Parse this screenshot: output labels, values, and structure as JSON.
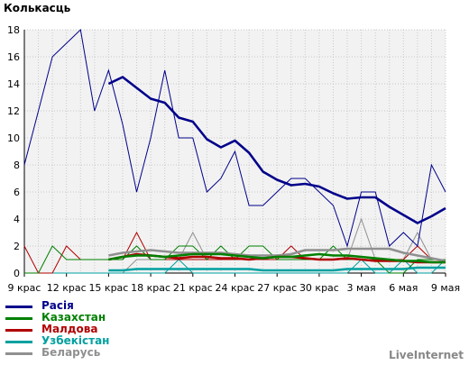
{
  "chart_data": {
    "type": "line",
    "ylabel": "Колькасць",
    "ylim": [
      0,
      18
    ],
    "yticks": [
      0,
      2,
      4,
      6,
      8,
      10,
      12,
      14,
      16,
      18
    ],
    "grid": true,
    "xticks": [
      "9 крас",
      "12 крас",
      "15 крас",
      "18 крас",
      "21 крас",
      "24 крас",
      "27 крас",
      "30 крас",
      "3 мая",
      "6 мая",
      "9 мая"
    ],
    "x_count": 31,
    "series": [
      {
        "name": "Расія",
        "color": "#00008b",
        "thin": true,
        "values": [
          8,
          12,
          16,
          17,
          18,
          12,
          15,
          11,
          6,
          10,
          15,
          10,
          10,
          6,
          7,
          9,
          5,
          5,
          6,
          7,
          7,
          6,
          5,
          2,
          6,
          6,
          2,
          3,
          2,
          8,
          6
        ],
        "avg_start": 6,
        "avg": [
          14,
          14.5,
          13.7,
          12.9,
          12.6,
          11.5,
          11.2,
          9.9,
          9.3,
          9.8,
          8.9,
          7.5,
          6.9,
          6.5,
          6.6,
          6.4,
          5.9,
          5.5,
          5.6,
          5.6,
          4.9,
          4.3,
          3.7,
          4.2,
          4.8
        ]
      },
      {
        "name": "Казахстан",
        "color": "#008000",
        "thin": true,
        "values": [
          0,
          0,
          2,
          1,
          1,
          1,
          1,
          1,
          2,
          1,
          1,
          2,
          2,
          1,
          2,
          1,
          2,
          2,
          1,
          1,
          1,
          1,
          2,
          1,
          1,
          1,
          0,
          0,
          1,
          1,
          1
        ],
        "avg_start": 6,
        "avg": [
          1,
          1.2,
          1.3,
          1.3,
          1.2,
          1.3,
          1.4,
          1.4,
          1.4,
          1.3,
          1.2,
          1.1,
          1.2,
          1.2,
          1.3,
          1.4,
          1.3,
          1.3,
          1.2,
          1.1,
          1.0,
          0.9,
          0.9,
          0.8,
          0.8
        ]
      },
      {
        "name": "Малдова",
        "color": "#b00000",
        "thin": true,
        "values": [
          2,
          0,
          0,
          2,
          1,
          1,
          1,
          1,
          3,
          1,
          1,
          1,
          1,
          1,
          1,
          1,
          1,
          1,
          1,
          2,
          1,
          1,
          1,
          1,
          1,
          1,
          1,
          1,
          2,
          1,
          1
        ],
        "avg_start": 6,
        "avg": [
          1.0,
          1.2,
          1.4,
          1.3,
          1.2,
          1.1,
          1.2,
          1.2,
          1.1,
          1.1,
          1.0,
          1.1,
          1.2,
          1.2,
          1.1,
          1.0,
          1.0,
          1.1,
          1.0,
          0.9,
          0.9,
          0.9,
          0.8,
          0.8,
          0.8
        ]
      },
      {
        "name": "Узбекістан",
        "color": "#00a0a0",
        "thin": true,
        "values": [
          0,
          0,
          0,
          0,
          0,
          0,
          0,
          0,
          0,
          0,
          0,
          1,
          0,
          0,
          0,
          0,
          0,
          0,
          0,
          0,
          0,
          0,
          0,
          0,
          1,
          0,
          0,
          1,
          0,
          0,
          1
        ],
        "avg_start": 6,
        "avg": [
          0.2,
          0.2,
          0.3,
          0.3,
          0.3,
          0.3,
          0.3,
          0.3,
          0.3,
          0.3,
          0.3,
          0.2,
          0.2,
          0.2,
          0.2,
          0.2,
          0.2,
          0.3,
          0.3,
          0.3,
          0.3,
          0.3,
          0.4,
          0.4,
          0.4
        ]
      },
      {
        "name": "Беларусь",
        "color": "#909090",
        "thin": true,
        "values": [
          0,
          0,
          0,
          0,
          0,
          0,
          0,
          0,
          1,
          1,
          1,
          1,
          3,
          1,
          1,
          1,
          1,
          1,
          1,
          1,
          1,
          1,
          1,
          1,
          4,
          1,
          1,
          1,
          3,
          1,
          1
        ],
        "avg_start": 6,
        "avg": [
          1.3,
          1.5,
          1.6,
          1.7,
          1.6,
          1.5,
          1.5,
          1.5,
          1.5,
          1.4,
          1.3,
          1.3,
          1.3,
          1.4,
          1.7,
          1.7,
          1.7,
          1.8,
          1.8,
          1.8,
          1.8,
          1.5,
          1.3,
          1.1,
          0.9
        ]
      }
    ]
  },
  "brand": "LiveInternet"
}
